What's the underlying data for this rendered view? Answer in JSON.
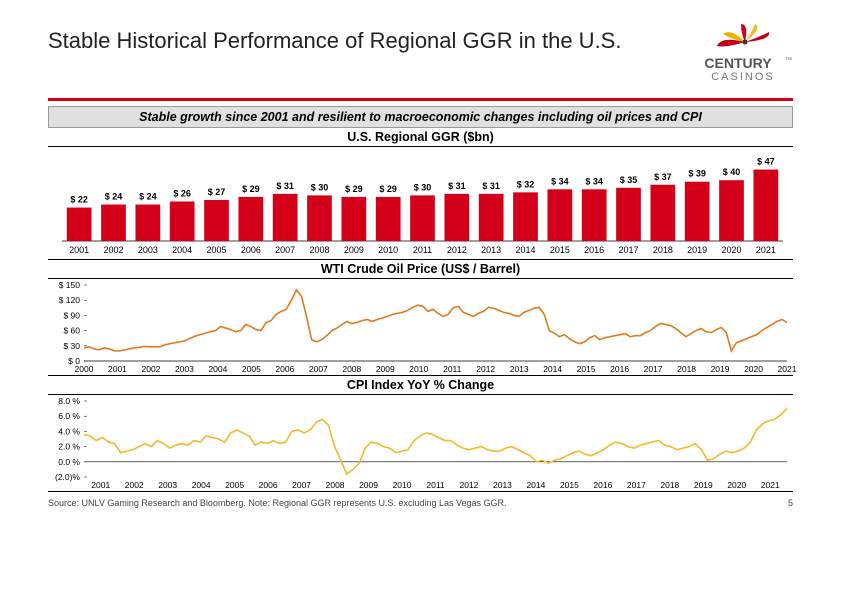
{
  "title": "Stable Historical Performance of Regional GGR in the U.S.",
  "logo": {
    "top_text": "CENTURY",
    "bottom_text": "CASINOS",
    "tm": "™"
  },
  "subtitle": "Stable growth since 2001 and resilient to macroeconomic changes including oil prices and CPI",
  "page_number": "5",
  "footnote": "Source: UNLV Gaming Research and Bloomberg. Note: Regional GGR represents U.S. excluding Las Vegas GGR.",
  "ggr_chart": {
    "title": "U.S. Regional GGR ($bn)",
    "bar_color": "#d4001a",
    "years": [
      "2001",
      "2002",
      "2003",
      "2004",
      "2005",
      "2006",
      "2007",
      "2008",
      "2009",
      "2010",
      "2011",
      "2012",
      "2013",
      "2014",
      "2015",
      "2016",
      "2017",
      "2018",
      "2019",
      "2020",
      "2021"
    ],
    "values": [
      22,
      24,
      24,
      26,
      27,
      29,
      31,
      30,
      29,
      29,
      30,
      31,
      31,
      32,
      34,
      34,
      35,
      37,
      39,
      40,
      47
    ],
    "label_prefix": "$ ",
    "ylim": [
      0,
      50
    ]
  },
  "wti_chart": {
    "title": "WTI Crude Oil Price (US$ / Barrel)",
    "line_color": "#e07b1c",
    "years": [
      "2000",
      "2001",
      "2002",
      "2003",
      "2004",
      "2005",
      "2006",
      "2007",
      "2008",
      "2009",
      "2010",
      "2011",
      "2012",
      "2013",
      "2014",
      "2015",
      "2016",
      "2017",
      "2018",
      "2019",
      "2020",
      "2021"
    ],
    "ytick_labels": [
      "$ 0",
      "$ 30",
      "$ 60",
      "$ 90",
      "$ 120",
      "$ 150"
    ],
    "ylim": [
      0,
      150
    ],
    "data": [
      26,
      28,
      24,
      22,
      26,
      24,
      20,
      20,
      22,
      24,
      26,
      27,
      29,
      28,
      28,
      28,
      32,
      34,
      36,
      38,
      40,
      45,
      49,
      52,
      55,
      58,
      60,
      68,
      65,
      62,
      58,
      60,
      72,
      68,
      62,
      60,
      76,
      80,
      92,
      98,
      102,
      120,
      140,
      128,
      88,
      42,
      38,
      42,
      50,
      60,
      65,
      72,
      78,
      74,
      76,
      80,
      82,
      78,
      82,
      85,
      88,
      92,
      94,
      96,
      100,
      106,
      110,
      108,
      98,
      102,
      94,
      88,
      92,
      105,
      108,
      96,
      92,
      88,
      94,
      98,
      106,
      104,
      100,
      96,
      94,
      90,
      88,
      96,
      100,
      104,
      106,
      92,
      60,
      55,
      48,
      52,
      44,
      38,
      34,
      38,
      46,
      50,
      42,
      46,
      48,
      50,
      52,
      54,
      48,
      50,
      50,
      56,
      60,
      68,
      74,
      72,
      70,
      64,
      56,
      48,
      54,
      60,
      64,
      58,
      56,
      62,
      66,
      56,
      20,
      36,
      40,
      44,
      48,
      52,
      60,
      66,
      72,
      78,
      82,
      76
    ]
  },
  "cpi_chart": {
    "title": "CPI Index YoY % Change",
    "line_color": "#f5b829",
    "years": [
      "2001",
      "2002",
      "2003",
      "2004",
      "2005",
      "2006",
      "2007",
      "2008",
      "2009",
      "2010",
      "2011",
      "2012",
      "2013",
      "2014",
      "2015",
      "2016",
      "2017",
      "2018",
      "2019",
      "2020",
      "2021"
    ],
    "ytick_labels": [
      "(2.0)%",
      "0.0 %",
      "2.0 %",
      "4.0 %",
      "6.0 %",
      "8.0 %"
    ],
    "ylim": [
      -2,
      8
    ],
    "data": [
      3.6,
      3.4,
      2.8,
      3.2,
      2.6,
      2.4,
      1.2,
      1.4,
      1.6,
      2.0,
      2.4,
      2.0,
      2.8,
      2.4,
      1.8,
      2.2,
      2.4,
      2.2,
      2.8,
      2.6,
      3.4,
      3.2,
      3.0,
      2.6,
      3.8,
      4.2,
      3.8,
      3.4,
      2.2,
      2.6,
      2.4,
      2.8,
      2.4,
      2.6,
      4.0,
      4.2,
      3.8,
      4.2,
      5.2,
      5.6,
      4.8,
      2.0,
      0.2,
      -1.6,
      -1.0,
      -0.2,
      1.8,
      2.6,
      2.4,
      2.0,
      1.8,
      1.2,
      1.4,
      1.6,
      2.8,
      3.4,
      3.8,
      3.6,
      3.2,
      2.8,
      2.8,
      2.2,
      1.8,
      1.6,
      1.8,
      2.0,
      1.6,
      1.4,
      1.4,
      1.8,
      2.0,
      1.6,
      1.2,
      0.8,
      0.0,
      0.2,
      -0.2,
      0.2,
      0.4,
      0.8,
      1.2,
      1.4,
      1.0,
      0.8,
      1.2,
      1.6,
      2.2,
      2.6,
      2.4,
      2.0,
      1.8,
      2.2,
      2.4,
      2.6,
      2.8,
      2.2,
      2.0,
      1.6,
      1.8,
      2.0,
      2.4,
      1.6,
      0.2,
      0.4,
      1.0,
      1.4,
      1.2,
      1.4,
      1.8,
      2.6,
      4.2,
      5.0,
      5.4,
      5.6,
      6.2,
      7.0
    ]
  }
}
